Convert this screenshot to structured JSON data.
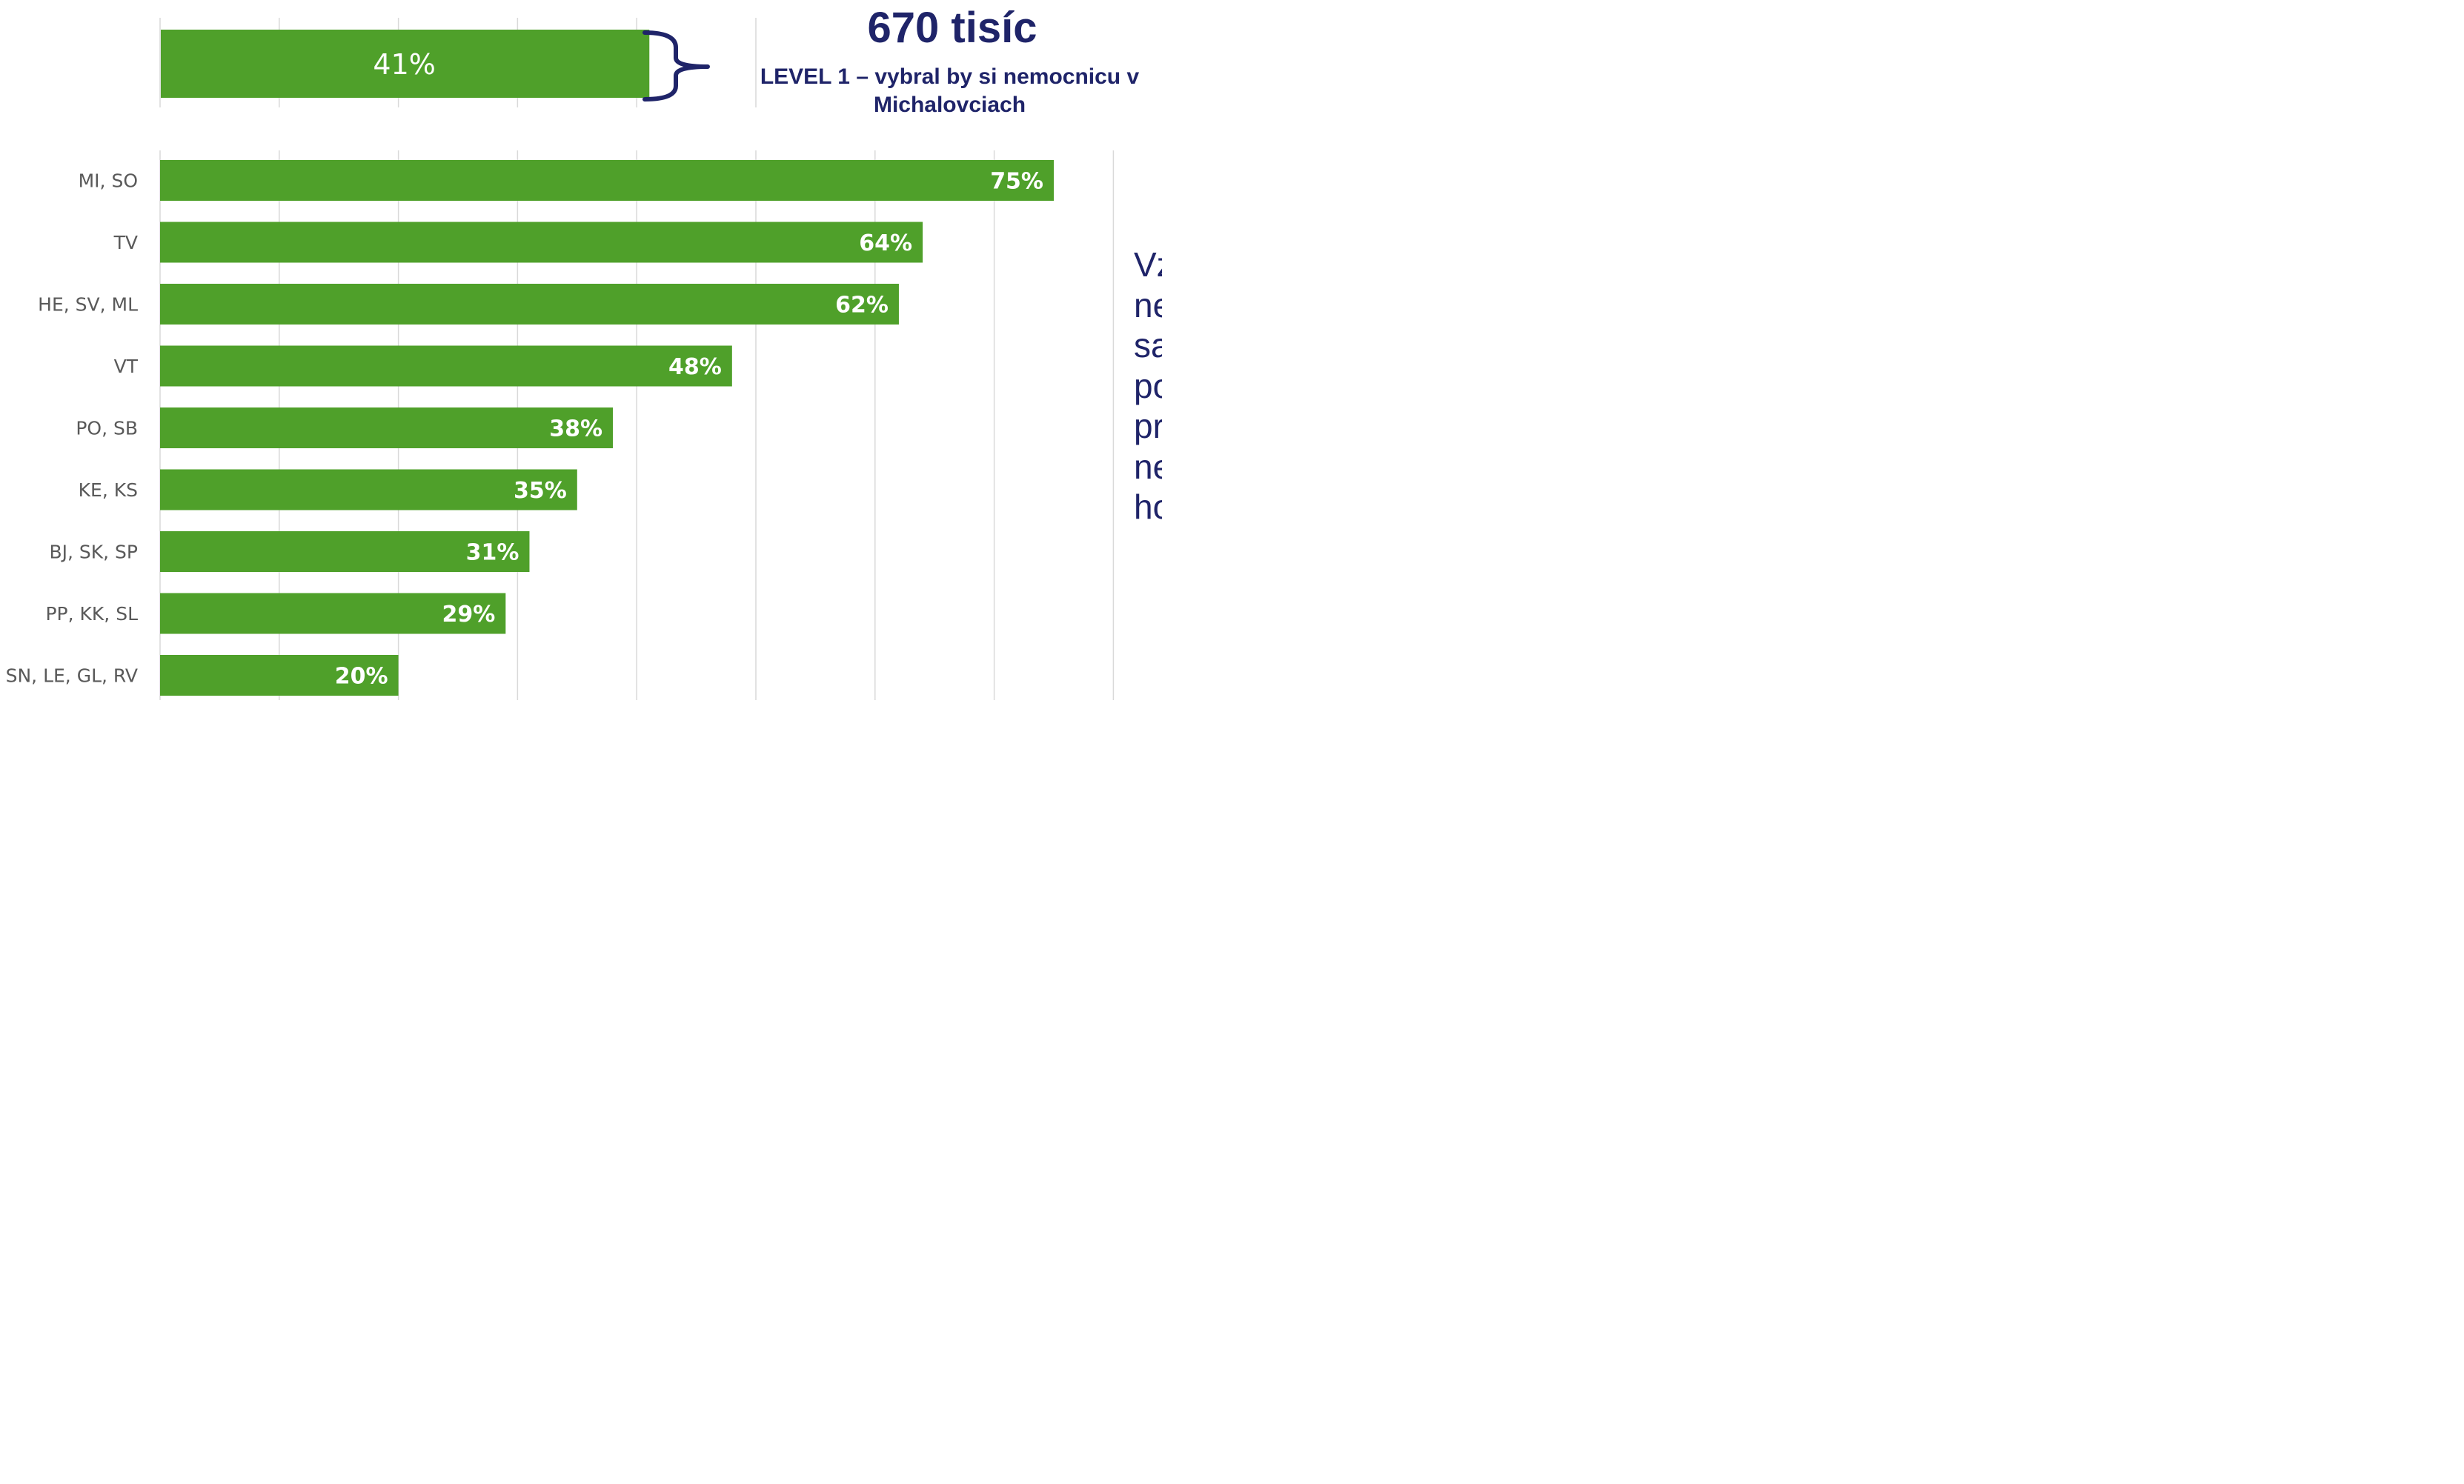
{
  "headline": "670 tisíc",
  "subtitle_lines": [
    "LEVEL 1 – vybral by si nemocnicu v",
    "Michalovciach"
  ],
  "side_text_lines": [
    "Vz",
    "ne",
    "sa",
    "po",
    "pr",
    "ne",
    "ho"
  ],
  "colors": {
    "bar": "#4fa02a",
    "bar_label": "#ffffff",
    "accent": "#1f2469",
    "grid": "#d9d9d9",
    "category_text": "#595959"
  },
  "chart_data": [
    {
      "type": "bar",
      "orientation": "horizontal",
      "categories": [
        ""
      ],
      "values": [
        41
      ],
      "data_labels": [
        "41%"
      ],
      "xlim": [
        0,
        140
      ],
      "grid": true,
      "annotation": "670 tisíc"
    },
    {
      "type": "bar",
      "orientation": "horizontal",
      "categories": [
        "MI, SO",
        "TV",
        "HE, SV, ML",
        "VT",
        "PO, SB",
        "KE, KS",
        "BJ, SK, SP",
        "PP, KK, SL",
        "SN, LE, GL, RV"
      ],
      "values": [
        75,
        64,
        62,
        48,
        38,
        35,
        31,
        29,
        20
      ],
      "data_labels": [
        "75%",
        "64%",
        "62%",
        "48%",
        "38%",
        "35%",
        "31%",
        "29%",
        "20%"
      ],
      "xlim": [
        0,
        80
      ],
      "grid": true
    }
  ]
}
